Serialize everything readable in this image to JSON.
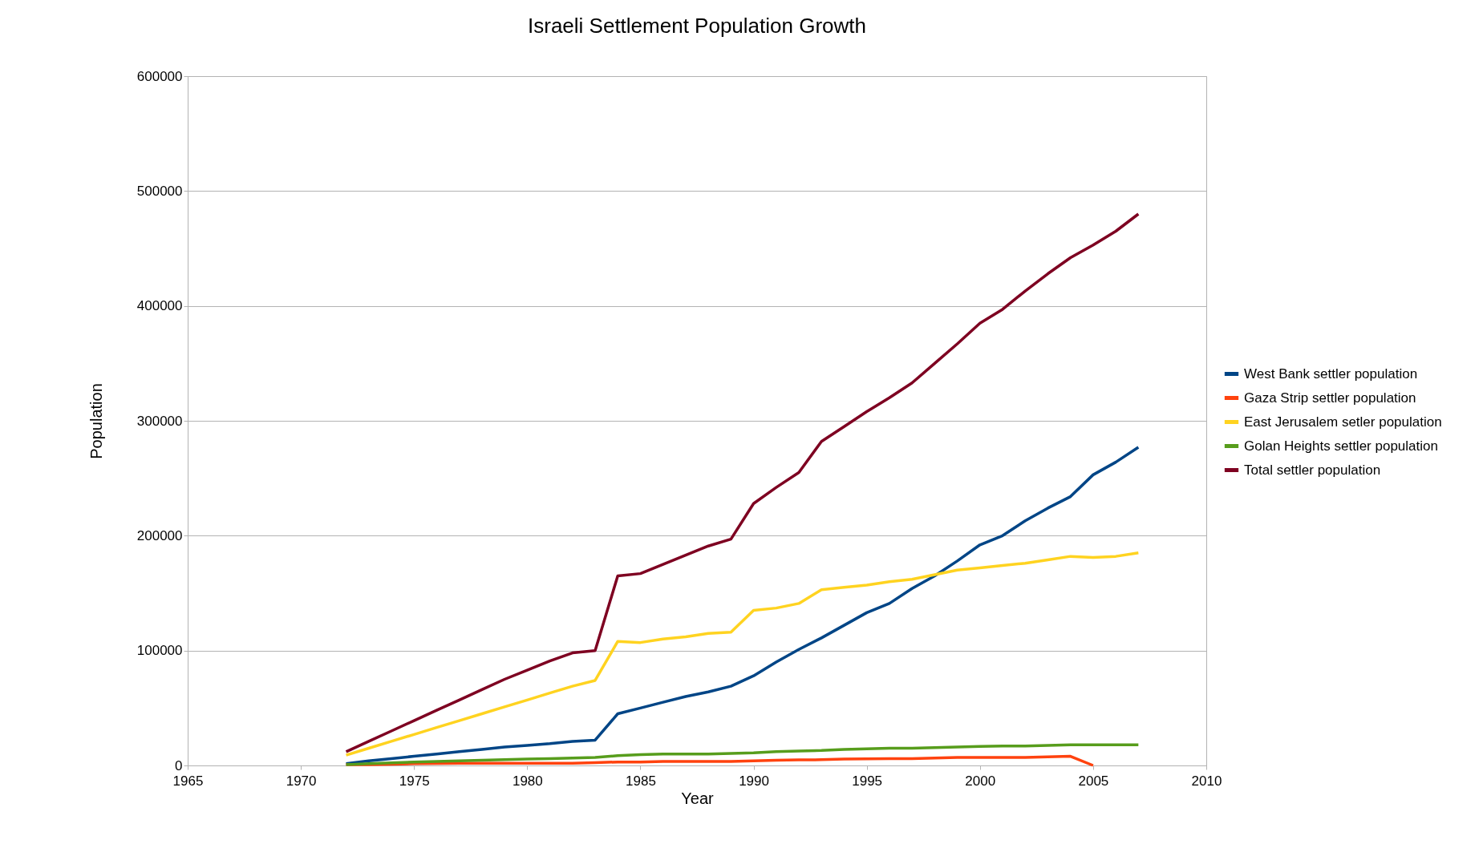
{
  "chart_data": {
    "type": "line",
    "title": "Israeli Settlement Population Growth",
    "xlabel": "Year",
    "ylabel": "Population",
    "x": [
      1972,
      1973,
      1974,
      1975,
      1976,
      1977,
      1978,
      1979,
      1980,
      1981,
      1982,
      1983,
      1984,
      1985,
      1986,
      1987,
      1988,
      1989,
      1990,
      1991,
      1992,
      1993,
      1994,
      1995,
      1996,
      1997,
      1998,
      1999,
      2000,
      2001,
      2002,
      2003,
      2004,
      2005,
      2006,
      2007
    ],
    "series": [
      {
        "name": "West Bank settler population",
        "color": "#004586",
        "values": [
          1500,
          4000,
          6000,
          8000,
          10000,
          12000,
          14000,
          16000,
          17500,
          19000,
          21000,
          22000,
          45000,
          50000,
          55000,
          60000,
          64000,
          69000,
          78000,
          90000,
          101000,
          111000,
          122000,
          133000,
          141000,
          154000,
          165000,
          178000,
          192000,
          200000,
          213000,
          224000,
          234000,
          253000,
          264000,
          277000
        ]
      },
      {
        "name": "Gaza Strip settler population",
        "color": "#ff420e",
        "values": [
          700,
          700,
          1000,
          1500,
          1800,
          2000,
          2000,
          2000,
          2000,
          2000,
          2000,
          2500,
          3000,
          3000,
          3500,
          3500,
          3500,
          3500,
          4000,
          4500,
          4800,
          5000,
          5500,
          5800,
          6000,
          6000,
          6500,
          7000,
          7000,
          7000,
          7000,
          7500,
          8000,
          0,
          null,
          null
        ]
      },
      {
        "name": "East Jerusalem setler population",
        "color": "#ffd320",
        "values": [
          9000,
          15000,
          21000,
          27000,
          33000,
          39000,
          45000,
          51000,
          57000,
          63000,
          69000,
          74000,
          108000,
          107000,
          110000,
          112000,
          115000,
          116000,
          135000,
          137000,
          141000,
          153000,
          155000,
          157000,
          160000,
          162000,
          166000,
          170000,
          172000,
          174000,
          176000,
          179000,
          182000,
          181000,
          182000,
          185000
        ]
      },
      {
        "name": "Golan Heights settler population",
        "color": "#579d1c",
        "values": [
          700,
          1500,
          2200,
          3000,
          3500,
          4000,
          4500,
          5000,
          5500,
          6000,
          6500,
          7000,
          8500,
          9500,
          10000,
          10000,
          10000,
          10500,
          11000,
          12000,
          12500,
          13000,
          14000,
          14500,
          15000,
          15000,
          15500,
          16000,
          16500,
          17000,
          17000,
          17500,
          18000,
          18000,
          18000,
          18000
        ]
      },
      {
        "name": "Total settler population",
        "color": "#7e0021",
        "values": [
          12000,
          21000,
          30000,
          39000,
          48000,
          57000,
          66000,
          75000,
          83000,
          91000,
          98000,
          100000,
          165000,
          167000,
          175000,
          183000,
          191000,
          197000,
          228000,
          242000,
          255000,
          282000,
          295000,
          308000,
          320000,
          333000,
          350000,
          367000,
          385000,
          397000,
          413000,
          428000,
          442000,
          453000,
          465000,
          480000
        ]
      }
    ],
    "xlim": [
      1965,
      2010
    ],
    "xticks": [
      1965,
      1970,
      1975,
      1980,
      1985,
      1990,
      1995,
      2000,
      2005,
      2010
    ],
    "ylim": [
      0,
      600000
    ],
    "yticks": [
      0,
      100000,
      200000,
      300000,
      400000,
      500000,
      600000
    ],
    "grid": "y",
    "legend": "right",
    "marker": "none",
    "line_style": "solid"
  }
}
